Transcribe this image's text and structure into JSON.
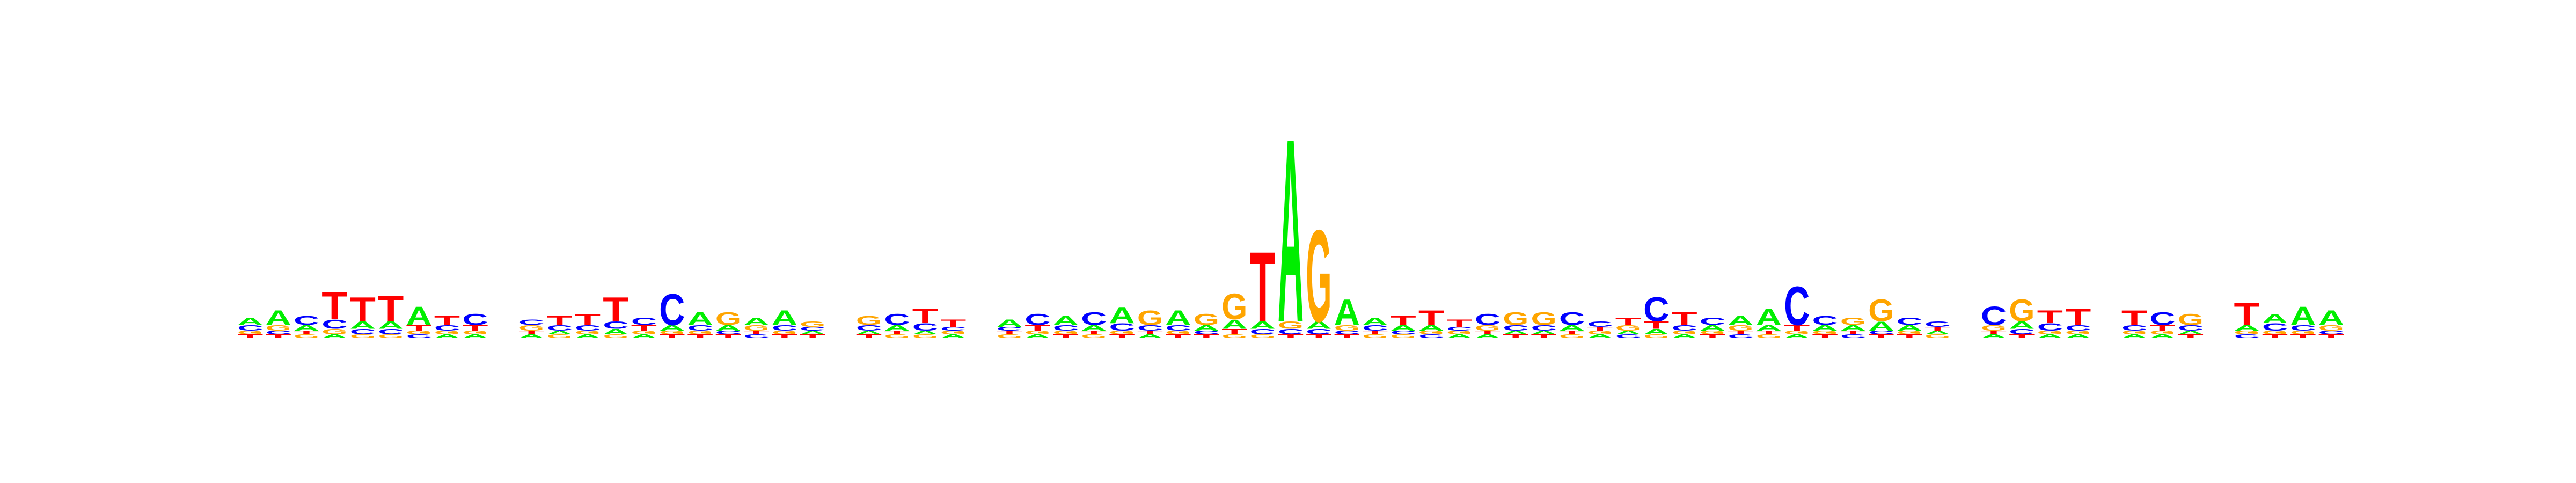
{
  "colors": {
    "A": "#00ee00",
    "C": "#0000ff",
    "G": "#ffa500",
    "T": "#ff0000"
  },
  "logo": {
    "columns": [
      {
        "letters": [
          [
            "T",
            0.02
          ],
          [
            "G",
            0.02
          ],
          [
            "C",
            0.03
          ],
          [
            "A",
            0.04
          ]
        ]
      },
      {
        "letters": [
          [
            "T",
            0.02
          ],
          [
            "C",
            0.02
          ],
          [
            "G",
            0.03
          ],
          [
            "A",
            0.08
          ]
        ]
      },
      {
        "letters": [
          [
            "G",
            0.02
          ],
          [
            "T",
            0.02
          ],
          [
            "A",
            0.03
          ],
          [
            "C",
            0.05
          ]
        ]
      },
      {
        "letters": [
          [
            "A",
            0.02
          ],
          [
            "G",
            0.03
          ],
          [
            "C",
            0.05
          ],
          [
            "T",
            0.15
          ]
        ]
      },
      {
        "letters": [
          [
            "G",
            0.02
          ],
          [
            "C",
            0.03
          ],
          [
            "A",
            0.04
          ],
          [
            "T",
            0.13
          ]
        ]
      },
      {
        "letters": [
          [
            "G",
            0.02
          ],
          [
            "C",
            0.03
          ],
          [
            "A",
            0.04
          ],
          [
            "T",
            0.14
          ]
        ]
      },
      {
        "letters": [
          [
            "C",
            0.02
          ],
          [
            "G",
            0.02
          ],
          [
            "T",
            0.03
          ],
          [
            "A",
            0.1
          ]
        ]
      },
      {
        "letters": [
          [
            "A",
            0.02
          ],
          [
            "G",
            0.02
          ],
          [
            "C",
            0.03
          ],
          [
            "T",
            0.05
          ]
        ]
      },
      {
        "letters": [
          [
            "A",
            0.02
          ],
          [
            "G",
            0.02
          ],
          [
            "T",
            0.03
          ],
          [
            "C",
            0.06
          ]
        ]
      },
      {
        "letters": []
      },
      {
        "letters": [
          [
            "A",
            0.02
          ],
          [
            "T",
            0.02
          ],
          [
            "G",
            0.03
          ],
          [
            "C",
            0.03
          ]
        ]
      },
      {
        "letters": [
          [
            "G",
            0.02
          ],
          [
            "A",
            0.02
          ],
          [
            "C",
            0.03
          ],
          [
            "T",
            0.05
          ]
        ]
      },
      {
        "letters": [
          [
            "A",
            0.02
          ],
          [
            "G",
            0.02
          ],
          [
            "C",
            0.03
          ],
          [
            "T",
            0.06
          ]
        ]
      },
      {
        "letters": [
          [
            "G",
            0.02
          ],
          [
            "A",
            0.03
          ],
          [
            "C",
            0.04
          ],
          [
            "T",
            0.13
          ]
        ]
      },
      {
        "letters": [
          [
            "A",
            0.02
          ],
          [
            "G",
            0.02
          ],
          [
            "T",
            0.03
          ],
          [
            "C",
            0.04
          ]
        ]
      },
      {
        "letters": [
          [
            "T",
            0.02
          ],
          [
            "G",
            0.02
          ],
          [
            "A",
            0.03
          ],
          [
            "C",
            0.17
          ]
        ]
      },
      {
        "letters": [
          [
            "T",
            0.02
          ],
          [
            "G",
            0.02
          ],
          [
            "C",
            0.03
          ],
          [
            "A",
            0.07
          ]
        ]
      },
      {
        "letters": [
          [
            "T",
            0.02
          ],
          [
            "C",
            0.02
          ],
          [
            "A",
            0.03
          ],
          [
            "G",
            0.07
          ]
        ]
      },
      {
        "letters": [
          [
            "C",
            0.02
          ],
          [
            "T",
            0.02
          ],
          [
            "G",
            0.03
          ],
          [
            "A",
            0.04
          ]
        ]
      },
      {
        "letters": [
          [
            "T",
            0.02
          ],
          [
            "G",
            0.02
          ],
          [
            "C",
            0.03
          ],
          [
            "A",
            0.08
          ]
        ]
      },
      {
        "letters": [
          [
            "T",
            0.02
          ],
          [
            "A",
            0.02
          ],
          [
            "C",
            0.02
          ],
          [
            "G",
            0.03
          ]
        ]
      },
      {
        "letters": []
      },
      {
        "letters": [
          [
            "T",
            0.02
          ],
          [
            "A",
            0.02
          ],
          [
            "C",
            0.03
          ],
          [
            "G",
            0.05
          ]
        ]
      },
      {
        "letters": [
          [
            "G",
            0.02
          ],
          [
            "T",
            0.02
          ],
          [
            "A",
            0.03
          ],
          [
            "C",
            0.06
          ]
        ]
      },
      {
        "letters": [
          [
            "G",
            0.02
          ],
          [
            "A",
            0.02
          ],
          [
            "C",
            0.04
          ],
          [
            "T",
            0.08
          ]
        ]
      },
      {
        "letters": [
          [
            "A",
            0.02
          ],
          [
            "G",
            0.02
          ],
          [
            "C",
            0.02
          ],
          [
            "T",
            0.04
          ]
        ]
      },
      {
        "letters": []
      },
      {
        "letters": [
          [
            "G",
            0.02
          ],
          [
            "T",
            0.02
          ],
          [
            "C",
            0.02
          ],
          [
            "A",
            0.04
          ]
        ]
      },
      {
        "letters": [
          [
            "A",
            0.02
          ],
          [
            "G",
            0.02
          ],
          [
            "T",
            0.03
          ],
          [
            "C",
            0.06
          ]
        ]
      },
      {
        "letters": [
          [
            "T",
            0.02
          ],
          [
            "G",
            0.02
          ],
          [
            "C",
            0.03
          ],
          [
            "A",
            0.05
          ]
        ]
      },
      {
        "letters": [
          [
            "G",
            0.02
          ],
          [
            "T",
            0.02
          ],
          [
            "A",
            0.03
          ],
          [
            "C",
            0.07
          ]
        ]
      },
      {
        "letters": [
          [
            "T",
            0.02
          ],
          [
            "G",
            0.02
          ],
          [
            "C",
            0.04
          ],
          [
            "A",
            0.09
          ]
        ]
      },
      {
        "letters": [
          [
            "A",
            0.02
          ],
          [
            "T",
            0.02
          ],
          [
            "C",
            0.03
          ],
          [
            "G",
            0.08
          ]
        ]
      },
      {
        "letters": [
          [
            "T",
            0.02
          ],
          [
            "G",
            0.02
          ],
          [
            "C",
            0.03
          ],
          [
            "A",
            0.08
          ]
        ]
      },
      {
        "letters": [
          [
            "T",
            0.02
          ],
          [
            "C",
            0.02
          ],
          [
            "A",
            0.03
          ],
          [
            "G",
            0.06
          ]
        ]
      },
      {
        "letters": [
          [
            "G",
            0.02
          ],
          [
            "T",
            0.03
          ],
          [
            "A",
            0.05
          ],
          [
            "G",
            0.14
          ]
        ]
      },
      {
        "letters": [
          [
            "G",
            0.02
          ],
          [
            "C",
            0.03
          ],
          [
            "A",
            0.04
          ],
          [
            "T",
            0.38
          ]
        ]
      },
      {
        "letters": [
          [
            "T",
            0.02
          ],
          [
            "C",
            0.03
          ],
          [
            "G",
            0.04
          ],
          [
            "A",
            1.0
          ]
        ]
      },
      {
        "letters": [
          [
            "T",
            0.02
          ],
          [
            "C",
            0.03
          ],
          [
            "A",
            0.04
          ],
          [
            "G",
            0.5
          ]
        ]
      },
      {
        "letters": [
          [
            "T",
            0.02
          ],
          [
            "C",
            0.02
          ],
          [
            "G",
            0.03
          ],
          [
            "A",
            0.14
          ]
        ]
      },
      {
        "letters": [
          [
            "G",
            0.02
          ],
          [
            "T",
            0.02
          ],
          [
            "C",
            0.03
          ],
          [
            "A",
            0.04
          ]
        ]
      },
      {
        "letters": [
          [
            "G",
            0.02
          ],
          [
            "C",
            0.02
          ],
          [
            "A",
            0.03
          ],
          [
            "T",
            0.05
          ]
        ]
      },
      {
        "letters": [
          [
            "C",
            0.02
          ],
          [
            "G",
            0.02
          ],
          [
            "A",
            0.03
          ],
          [
            "T",
            0.08
          ]
        ]
      },
      {
        "letters": [
          [
            "A",
            0.02
          ],
          [
            "G",
            0.02
          ],
          [
            "C",
            0.02
          ],
          [
            "T",
            0.04
          ]
        ]
      },
      {
        "letters": [
          [
            "A",
            0.02
          ],
          [
            "T",
            0.02
          ],
          [
            "G",
            0.03
          ],
          [
            "C",
            0.06
          ]
        ]
      },
      {
        "letters": [
          [
            "T",
            0.02
          ],
          [
            "A",
            0.02
          ],
          [
            "C",
            0.03
          ],
          [
            "G",
            0.07
          ]
        ]
      },
      {
        "letters": [
          [
            "T",
            0.02
          ],
          [
            "A",
            0.02
          ],
          [
            "C",
            0.03
          ],
          [
            "G",
            0.07
          ]
        ]
      },
      {
        "letters": [
          [
            "G",
            0.02
          ],
          [
            "T",
            0.02
          ],
          [
            "A",
            0.03
          ],
          [
            "C",
            0.07
          ]
        ]
      },
      {
        "letters": [
          [
            "A",
            0.02
          ],
          [
            "G",
            0.02
          ],
          [
            "T",
            0.02
          ],
          [
            "C",
            0.03
          ]
        ]
      },
      {
        "letters": [
          [
            "C",
            0.02
          ],
          [
            "A",
            0.02
          ],
          [
            "G",
            0.03
          ],
          [
            "T",
            0.04
          ]
        ]
      },
      {
        "letters": [
          [
            "G",
            0.02
          ],
          [
            "A",
            0.03
          ],
          [
            "T",
            0.04
          ],
          [
            "C",
            0.13
          ]
        ]
      },
      {
        "letters": [
          [
            "A",
            0.02
          ],
          [
            "G",
            0.02
          ],
          [
            "C",
            0.03
          ],
          [
            "T",
            0.07
          ]
        ]
      },
      {
        "letters": [
          [
            "T",
            0.02
          ],
          [
            "G",
            0.02
          ],
          [
            "A",
            0.03
          ],
          [
            "C",
            0.04
          ]
        ]
      },
      {
        "letters": [
          [
            "C",
            0.02
          ],
          [
            "T",
            0.02
          ],
          [
            "G",
            0.03
          ],
          [
            "A",
            0.05
          ]
        ]
      },
      {
        "letters": [
          [
            "G",
            0.02
          ],
          [
            "T",
            0.02
          ],
          [
            "A",
            0.03
          ],
          [
            "A",
            0.09
          ]
        ]
      },
      {
        "letters": [
          [
            "A",
            0.02
          ],
          [
            "G",
            0.02
          ],
          [
            "T",
            0.03
          ],
          [
            "C",
            0.21
          ]
        ]
      },
      {
        "letters": [
          [
            "T",
            0.02
          ],
          [
            "G",
            0.02
          ],
          [
            "A",
            0.03
          ],
          [
            "C",
            0.05
          ]
        ]
      },
      {
        "letters": [
          [
            "C",
            0.02
          ],
          [
            "T",
            0.02
          ],
          [
            "A",
            0.03
          ],
          [
            "G",
            0.04
          ]
        ]
      },
      {
        "letters": [
          [
            "T",
            0.02
          ],
          [
            "C",
            0.02
          ],
          [
            "A",
            0.05
          ],
          [
            "G",
            0.12
          ]
        ]
      },
      {
        "letters": [
          [
            "T",
            0.02
          ],
          [
            "G",
            0.02
          ],
          [
            "A",
            0.03
          ],
          [
            "C",
            0.04
          ]
        ]
      },
      {
        "letters": [
          [
            "G",
            0.02
          ],
          [
            "A",
            0.02
          ],
          [
            "T",
            0.02
          ],
          [
            "C",
            0.03
          ]
        ]
      },
      {
        "letters": []
      },
      {
        "letters": [
          [
            "A",
            0.02
          ],
          [
            "T",
            0.02
          ],
          [
            "G",
            0.03
          ],
          [
            "C",
            0.1
          ]
        ]
      },
      {
        "letters": [
          [
            "T",
            0.02
          ],
          [
            "C",
            0.03
          ],
          [
            "A",
            0.04
          ],
          [
            "G",
            0.12
          ]
        ]
      },
      {
        "letters": [
          [
            "A",
            0.02
          ],
          [
            "G",
            0.02
          ],
          [
            "C",
            0.04
          ],
          [
            "T",
            0.07
          ]
        ]
      },
      {
        "letters": [
          [
            "A",
            0.02
          ],
          [
            "G",
            0.02
          ],
          [
            "C",
            0.03
          ],
          [
            "T",
            0.09
          ]
        ]
      },
      {
        "letters": []
      },
      {
        "letters": [
          [
            "A",
            0.02
          ],
          [
            "G",
            0.02
          ],
          [
            "C",
            0.03
          ],
          [
            "T",
            0.08
          ]
        ]
      },
      {
        "letters": [
          [
            "A",
            0.02
          ],
          [
            "G",
            0.02
          ],
          [
            "T",
            0.03
          ],
          [
            "C",
            0.07
          ]
        ]
      },
      {
        "letters": [
          [
            "T",
            0.02
          ],
          [
            "A",
            0.02
          ],
          [
            "C",
            0.03
          ],
          [
            "G",
            0.06
          ]
        ]
      },
      {
        "letters": []
      },
      {
        "letters": [
          [
            "C",
            0.02
          ],
          [
            "G",
            0.02
          ],
          [
            "A",
            0.03
          ],
          [
            "T",
            0.12
          ]
        ]
      },
      {
        "letters": [
          [
            "T",
            0.02
          ],
          [
            "G",
            0.02
          ],
          [
            "C",
            0.04
          ],
          [
            "A",
            0.05
          ]
        ]
      },
      {
        "letters": [
          [
            "T",
            0.02
          ],
          [
            "G",
            0.02
          ],
          [
            "C",
            0.03
          ],
          [
            "A",
            0.1
          ]
        ]
      },
      {
        "letters": [
          [
            "T",
            0.02
          ],
          [
            "C",
            0.02
          ],
          [
            "G",
            0.03
          ],
          [
            "A",
            0.08
          ]
        ]
      }
    ]
  }
}
